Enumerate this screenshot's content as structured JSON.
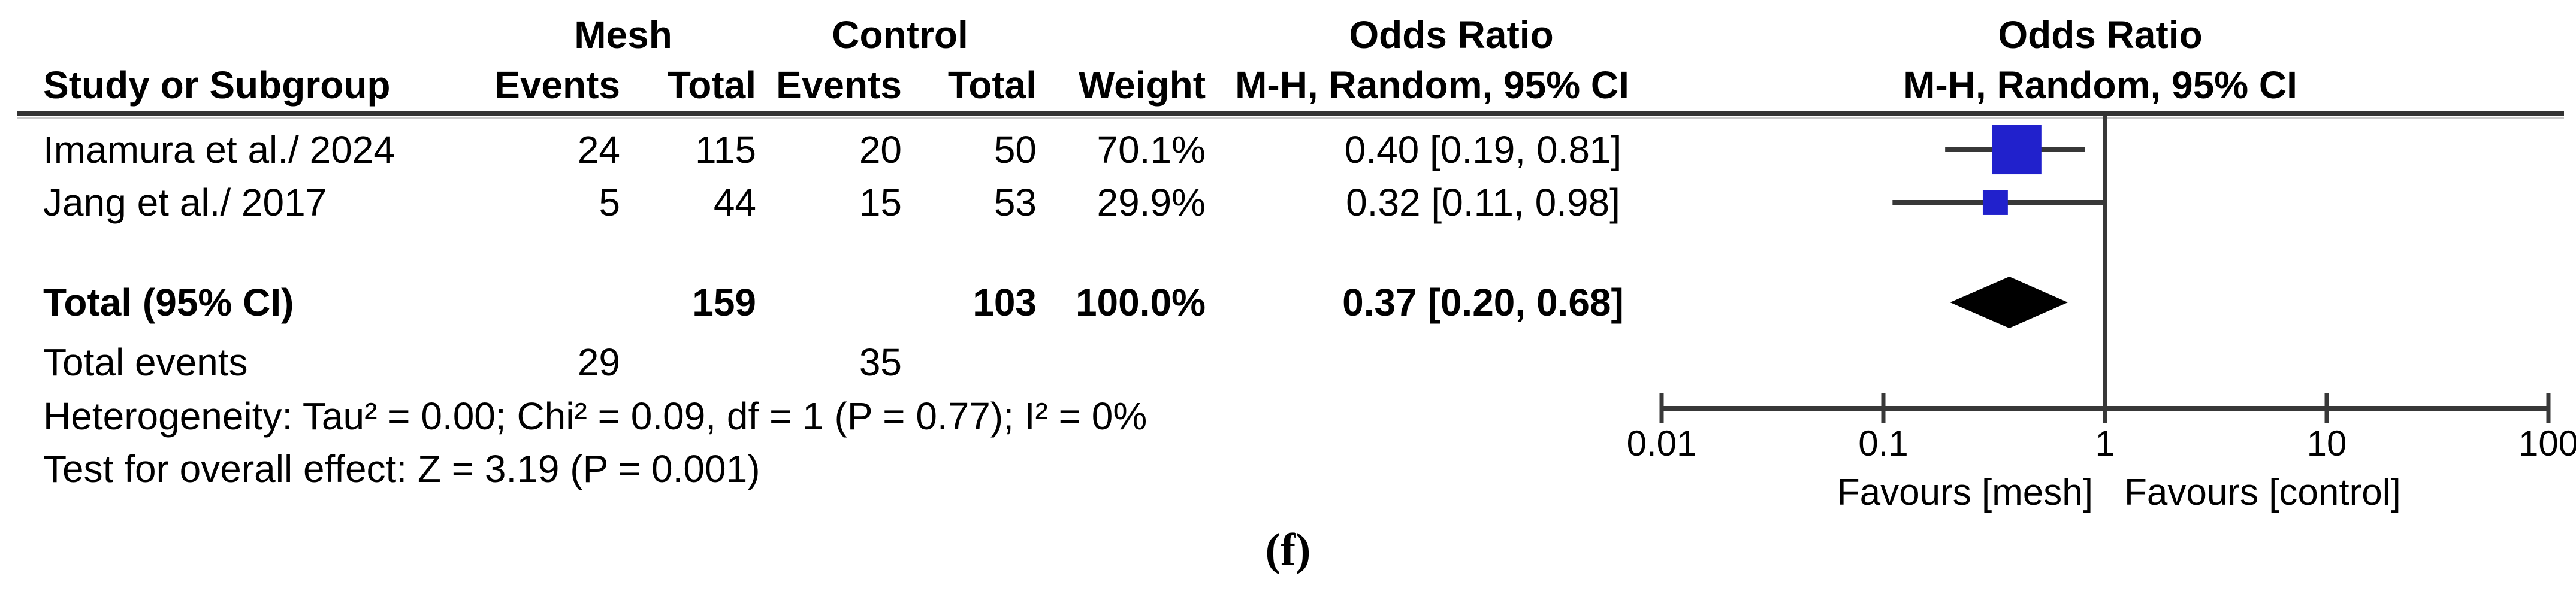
{
  "table": {
    "group_headers": {
      "mesh": "Mesh",
      "control": "Control",
      "odds_ratio_left": "Odds Ratio",
      "odds_ratio_right": "Odds Ratio"
    },
    "col_headers": {
      "study": "Study or Subgroup",
      "events_mesh": "Events",
      "total_mesh": "Total",
      "events_control": "Events",
      "total_control": "Total",
      "weight": "Weight",
      "mh_random_left": "M-H, Random, 95% CI",
      "mh_random_right": "M-H, Random, 95% CI"
    },
    "studies": [
      {
        "name": "Imamura et al./ 2024",
        "events_mesh": "24",
        "total_mesh": "115",
        "events_control": "20",
        "total_control": "50",
        "weight": "70.1%",
        "or_ci_text": "0.40 [0.19, 0.81]"
      },
      {
        "name": "Jang et al./ 2017",
        "events_mesh": "5",
        "total_mesh": "44",
        "events_control": "15",
        "total_control": "53",
        "weight": "29.9%",
        "or_ci_text": "0.32 [0.11, 0.98]"
      }
    ],
    "total_row": {
      "label": "Total (95% CI)",
      "total_mesh": "159",
      "total_control": "103",
      "weight": "100.0%",
      "or_ci_text": "0.37 [0.20, 0.68]"
    },
    "total_events_row": {
      "label": "Total events",
      "events_mesh": "29",
      "events_control": "35"
    },
    "heterogeneity": "Heterogeneity: Tau² = 0.00; Chi² = 0.09, df = 1 (P = 0.77); I² = 0%",
    "overall_effect": "Test for overall effect: Z = 3.19 (P = 0.001)"
  },
  "chart_data": {
    "type": "forest",
    "x_scale": "log10",
    "axis": {
      "min": 0.01,
      "max": 100,
      "ticks": [
        "0.01",
        "0.1",
        "1",
        "10",
        "100"
      ],
      "ref_line": 1
    },
    "studies": [
      {
        "name": "Imamura et al./ 2024",
        "or": 0.4,
        "ci_low": 0.19,
        "ci_high": 0.81,
        "weight_pct": 70.1
      },
      {
        "name": "Jang et al./ 2017",
        "or": 0.32,
        "ci_low": 0.11,
        "ci_high": 0.98,
        "weight_pct": 29.9
      }
    ],
    "total": {
      "or": 0.37,
      "ci_low": 0.2,
      "ci_high": 0.68,
      "weight_pct": 100.0
    },
    "favours_left": "Favours [mesh]",
    "favours_right": "Favours [control]",
    "marker_color": "#2121CC",
    "diamond_color": "#000000",
    "line_color": "#383838"
  },
  "caption": "(f)"
}
